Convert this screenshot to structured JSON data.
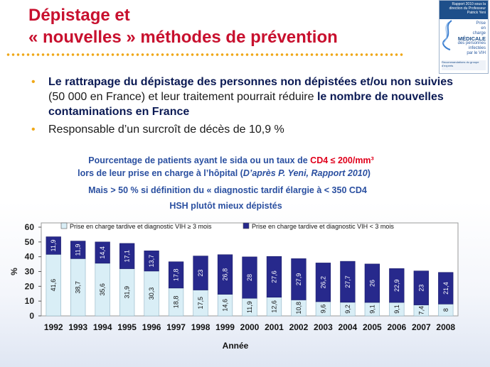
{
  "slide": {
    "title_line1": "Dépistage et",
    "title_line2": "« nouvelles » méthodes de prévention",
    "bullet1_bold_a": "Le rattrapage du dépistage des personnes non dépistées et/ou non suivies",
    "bullet1_text_a": " (50 000 en France) et leur traitement pourrait réduire ",
    "bullet1_bold_b": "le nombre de nouvelles contaminations en France",
    "bullet2": "Responsable d’un surcroît de décès de 10,9 %",
    "sub1_a": "Pourcentage de patients ayant le sida ou un taux de ",
    "sub1_red": "CD4 ≤ 200/mm³",
    "sub2_a": "lors de leur prise en charge à l’hôpital (",
    "sub2_italic": "D’après P. Yeni, Rapport 2010",
    "sub2_b": ")",
    "sub3": "Mais > 50 % si définition du « diagnostic tardif élargie à < 350 CD4",
    "sub4": "HSH plutôt mieux dépistés"
  },
  "cover": {
    "top_text": "Rapport 2010 sous la direction du Professeur Patrick Yeni",
    "line1": "Prise",
    "line2": "en",
    "line3": "charge",
    "line4": "MÉDICALE",
    "line5": "des personnes",
    "line6": "infectées",
    "line7": "par le VIH",
    "bottom_text": "Recommandations du groupe d’experts"
  },
  "colors": {
    "title": "#c8102e",
    "bullet_marker": "#f0a818",
    "late_fill": "#d9eef6",
    "recent_fill": "#27298c",
    "subtitle": "#2a4fa0"
  },
  "chart_data": {
    "type": "bar",
    "stacked": true,
    "title": "",
    "xlabel": "Année",
    "ylabel": "%",
    "ylim": [
      0,
      60
    ],
    "yticks": [
      0,
      10,
      20,
      30,
      40,
      50,
      60
    ],
    "legend_position": "top",
    "categories": [
      "1992",
      "1993",
      "1994",
      "1995",
      "1996",
      "1997",
      "1998",
      "1999",
      "2000",
      "2001",
      "2002",
      "2003",
      "2004",
      "2005",
      "2006",
      "2007",
      "2008"
    ],
    "series": [
      {
        "name": "Prise en charge tardive et diagnostic VIH ≥ 3 mois",
        "values": [
          41.6,
          38.7,
          35.6,
          31.9,
          30.3,
          18.8,
          17.5,
          14.6,
          11.9,
          12.6,
          10.8,
          9.6,
          9.2,
          9.1,
          9.1,
          7.4,
          8
        ],
        "labels": [
          "41,6",
          "38,7",
          "35,6",
          "31,9",
          "30,3",
          "18,8",
          "17,5",
          "14,6",
          "11,9",
          "12,6",
          "10,8",
          "9,6",
          "9,2",
          "9,1",
          "9,1",
          "7,4",
          "8"
        ]
      },
      {
        "name": "Prise en charge tardive et diagnostic VIH < 3 mois",
        "values": [
          11.9,
          11.9,
          14.4,
          17.1,
          13.7,
          17.8,
          23,
          26.8,
          28,
          27.6,
          27.9,
          26.2,
          27.7,
          26,
          22.9,
          23,
          21.4
        ],
        "labels": [
          "11,9",
          "11,9",
          "14,4",
          "17,1",
          "13,7",
          "17,8",
          "23",
          "26,8",
          "28",
          "27,6",
          "27,9",
          "26,2",
          "27,7",
          "26",
          "22,9",
          "23",
          "21,4"
        ]
      }
    ]
  }
}
